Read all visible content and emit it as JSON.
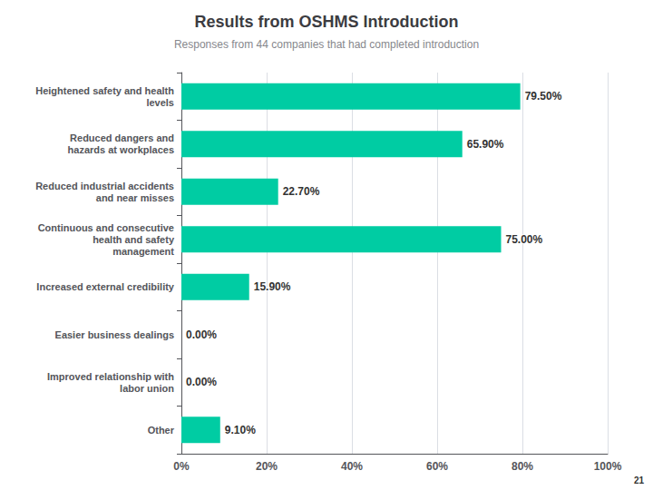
{
  "chart_data": {
    "type": "bar",
    "title": "Results from OSHMS Introduction",
    "subtitle": "Responses from 44 companies that had completed introduction",
    "annotations": [
      "21"
    ],
    "orientation": "horizontal",
    "categories": [
      "Heightened safety and health\nlevels",
      "Reduced dangers and\nhazards at workplaces",
      "Reduced industrial accidents\nand near misses",
      "Continuous and consecutive\nhealth and safety\nmanagement",
      "Increased external credibility",
      "Easier business dealings",
      "Improved relationship with\nlabor union",
      "Other"
    ],
    "values": [
      79.5,
      65.9,
      22.7,
      75.0,
      15.9,
      0.0,
      0.0,
      9.1
    ],
    "value_labels": [
      "79.50%",
      "65.90%",
      "22.70%",
      "75.00%",
      "15.90%",
      "0.00%",
      "0.00%",
      "9.10%"
    ],
    "data_labels": true,
    "color": "#00CCA3",
    "xlim": [
      0,
      100
    ],
    "xticks": [
      {
        "value": 0,
        "label": "0%"
      },
      {
        "value": 20,
        "label": "20%"
      },
      {
        "value": 40,
        "label": "40%"
      },
      {
        "value": 60,
        "label": "60%"
      },
      {
        "value": 80,
        "label": "80%"
      },
      {
        "value": 100,
        "label": "100%"
      }
    ],
    "grid": true
  }
}
